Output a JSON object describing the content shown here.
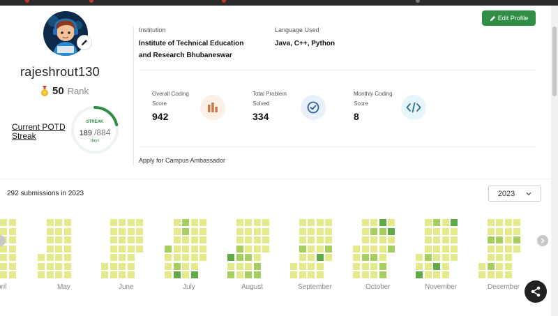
{
  "profile": {
    "username": "rajeshrout130",
    "rank_value": "50",
    "rank_label": "Rank",
    "edit_profile_label": "Edit Profile"
  },
  "potd": {
    "label_line1": "Current POTD",
    "label_line2": "Streak",
    "streak_title": "STREAK",
    "current": "189",
    "total": "/884",
    "unit": "days",
    "progress_fraction": 0.214
  },
  "info": {
    "institution_label": "Institution",
    "institution_line1": "Institute of Technical Education",
    "institution_line2": "and Research Bhubaneswar",
    "language_label": "Language Used",
    "language_value": "Java, C++, Python"
  },
  "stats": [
    {
      "label_line1": "Overall Coding",
      "label_line2": "Score",
      "value": "942",
      "icon": "bar-chart-icon",
      "icon_bg": "#fdf0e6",
      "icon_color": "#c9784a"
    },
    {
      "label_line1": "Total Problem",
      "label_line2": "Solved",
      "value": "334",
      "icon": "check-circle-icon",
      "icon_bg": "#e8f1fb",
      "icon_color": "#2f5f9e"
    },
    {
      "label_line1": "Monthly Coding",
      "label_line2": "Score",
      "value": "8",
      "icon": "code-icon",
      "icon_bg": "#e6f6fb",
      "icon_color": "#2b6f8a"
    }
  ],
  "campus_link": "Apply for Campus Ambassador",
  "submissions": {
    "summary": "292 submissions in 2023",
    "year_selected": "2023",
    "months": [
      "pril",
      "May",
      "June",
      "July",
      "August",
      "September",
      "October",
      "November",
      "December"
    ]
  },
  "colors": {
    "brand_green": "#2f8d46",
    "heat_l0": "#e4ea8c",
    "heat_l1": "#a6cf60",
    "heat_l2": "#60a94b",
    "heat_l3": "#2c7a2e"
  }
}
